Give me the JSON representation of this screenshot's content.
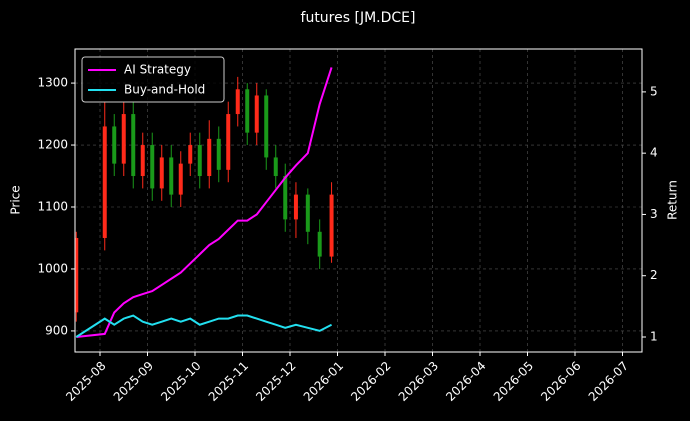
{
  "chart_data": {
    "type": "candlestick",
    "title": "futures [JM.DCE]",
    "ylabel": "Price",
    "y2label": "Return",
    "x": [
      "2025-07",
      "2025-08",
      "2025-08",
      "2025-08",
      "2025-08",
      "2025-08",
      "2025-09",
      "2025-09",
      "2025-09",
      "2025-09",
      "2025-09",
      "2025-10",
      "2025-10",
      "2025-10",
      "2025-10",
      "2025-10",
      "2025-11",
      "2025-11",
      "2025-11",
      "2025-11",
      "2025-11",
      "2025-12",
      "2025-12",
      "2025-12",
      "2025-12"
    ],
    "open": [
      930,
      1050,
      1230,
      1170,
      1250,
      1150,
      1200,
      1130,
      1180,
      1120,
      1170,
      1200,
      1150,
      1210,
      1160,
      1250,
      1290,
      1220,
      1280,
      1180,
      1150,
      1080,
      1120,
      1060,
      1020
    ],
    "high": [
      1060,
      1270,
      1250,
      1270,
      1270,
      1220,
      1220,
      1200,
      1200,
      1190,
      1220,
      1220,
      1240,
      1230,
      1270,
      1310,
      1300,
      1300,
      1290,
      1200,
      1170,
      1140,
      1130,
      1080,
      1140
    ],
    "low": [
      915,
      1030,
      1150,
      1150,
      1130,
      1130,
      1110,
      1110,
      1100,
      1100,
      1150,
      1130,
      1130,
      1140,
      1140,
      1230,
      1200,
      1200,
      1160,
      1130,
      1060,
      1050,
      1040,
      1000,
      1010
    ],
    "close": [
      1050,
      1230,
      1170,
      1250,
      1150,
      1200,
      1130,
      1180,
      1120,
      1170,
      1200,
      1150,
      1210,
      1160,
      1250,
      1290,
      1220,
      1280,
      1180,
      1150,
      1080,
      1120,
      1060,
      1020,
      1120
    ],
    "up_color": "#ff2a1a",
    "down_color": "#1a9a1a",
    "series": [
      {
        "name": "AI Strategy",
        "color": "#ff00ff",
        "axis": "y2",
        "values": [
          1.0,
          1.05,
          1.4,
          1.55,
          1.65,
          1.7,
          1.75,
          1.85,
          1.95,
          2.05,
          2.2,
          2.35,
          2.5,
          2.6,
          2.75,
          2.9,
          2.9,
          3.0,
          3.2,
          3.4,
          3.6,
          3.8,
          4.0,
          4.8,
          5.4
        ]
      },
      {
        "name": "Buy-and-Hold",
        "color": "#22e0f0",
        "axis": "y2",
        "values": [
          1.0,
          1.3,
          1.2,
          1.3,
          1.35,
          1.25,
          1.2,
          1.25,
          1.3,
          1.25,
          1.3,
          1.2,
          1.25,
          1.3,
          1.3,
          1.35,
          1.35,
          1.3,
          1.25,
          1.2,
          1.15,
          1.2,
          1.15,
          1.1,
          1.2
        ]
      }
    ],
    "ylim": [
      866,
      1355
    ],
    "yticks": [
      900,
      1000,
      1100,
      1200,
      1300
    ],
    "y2lim": [
      0.755,
      5.7
    ],
    "y2ticks": [
      1,
      2,
      3,
      4,
      5
    ],
    "xticks": [
      "2025-08",
      "2025-09",
      "2025-10",
      "2025-11",
      "2025-12",
      "2026-01",
      "2026-02",
      "2026-03",
      "2026-04",
      "2026-05",
      "2026-06",
      "2026-07"
    ],
    "grid": true,
    "legend": "upper-left"
  }
}
